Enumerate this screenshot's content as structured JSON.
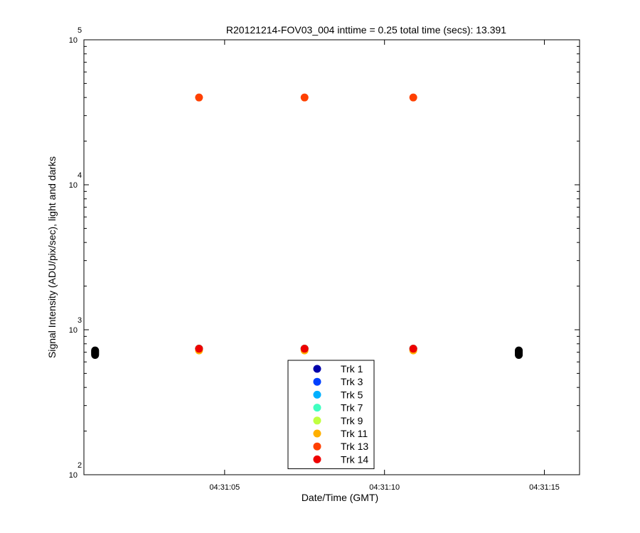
{
  "chart_data": {
    "type": "scatter",
    "title": "R20121214-FOV03_004 inttime = 0.25 total time (secs): 13.391",
    "xlabel": "Date/Time (GMT)",
    "ylabel": "Signal Intensity (ADU/pix/sec), light and darks",
    "y_scale": "log",
    "ylim": [
      100,
      100000
    ],
    "xlim": [
      "04:31:00.6",
      "04:31:16.1"
    ],
    "x_ticks": [
      "04:31:05",
      "04:31:10",
      "04:31:15"
    ],
    "y_ticks": [
      {
        "base": "10",
        "exp": "2"
      },
      {
        "base": "10",
        "exp": "3"
      },
      {
        "base": "10",
        "exp": "4"
      },
      {
        "base": "10",
        "exp": "5"
      }
    ],
    "grid": false,
    "legend_position": "bottom-center",
    "series": [
      {
        "name": "Trk 1",
        "color": "#0000aa",
        "points": [
          [
            "04:31:04.2",
            740
          ],
          [
            "04:31:07.5",
            740
          ],
          [
            "04:31:10.9",
            740
          ]
        ]
      },
      {
        "name": "Trk 3",
        "color": "#0040ff",
        "points": [
          [
            "04:31:04.2",
            740
          ],
          [
            "04:31:07.5",
            740
          ],
          [
            "04:31:10.9",
            740
          ]
        ]
      },
      {
        "name": "Trk 5",
        "color": "#00b0ff",
        "points": [
          [
            "04:31:04.2",
            740
          ],
          [
            "04:31:07.5",
            740
          ],
          [
            "04:31:10.9",
            740
          ]
        ]
      },
      {
        "name": "Trk 7",
        "color": "#40ffc0",
        "points": [
          [
            "04:31:04.2",
            740
          ],
          [
            "04:31:07.5",
            740
          ],
          [
            "04:31:10.9",
            740
          ]
        ]
      },
      {
        "name": "Trk 9",
        "color": "#c0ff40",
        "points": [
          [
            "04:31:04.2",
            740
          ],
          [
            "04:31:07.5",
            740
          ],
          [
            "04:31:10.9",
            740
          ]
        ]
      },
      {
        "name": "Trk 11",
        "color": "#ffb000",
        "points": [
          [
            "04:31:04.2",
            720
          ],
          [
            "04:31:07.5",
            720
          ],
          [
            "04:31:10.9",
            720
          ]
        ]
      },
      {
        "name": "Trk 13",
        "color": "#ff4000",
        "points": [
          [
            "04:31:04.2",
            40000
          ],
          [
            "04:31:07.5",
            40000
          ],
          [
            "04:31:10.9",
            40000
          ]
        ]
      },
      {
        "name": "Trk 14",
        "color": "#ee0000",
        "points": [
          [
            "04:31:04.2",
            740
          ],
          [
            "04:31:07.5",
            740
          ],
          [
            "04:31:10.9",
            740
          ]
        ]
      }
    ],
    "darks": {
      "color": "#000000",
      "points": [
        [
          "04:31:00.95",
          670
        ],
        [
          "04:31:00.95",
          680
        ],
        [
          "04:31:00.95",
          690
        ],
        [
          "04:31:00.95",
          700
        ],
        [
          "04:31:00.95",
          710
        ],
        [
          "04:31:00.95",
          720
        ],
        [
          "04:31:14.2",
          670
        ],
        [
          "04:31:14.2",
          680
        ],
        [
          "04:31:14.2",
          690
        ],
        [
          "04:31:14.2",
          700
        ],
        [
          "04:31:14.2",
          710
        ],
        [
          "04:31:14.2",
          720
        ]
      ]
    }
  }
}
